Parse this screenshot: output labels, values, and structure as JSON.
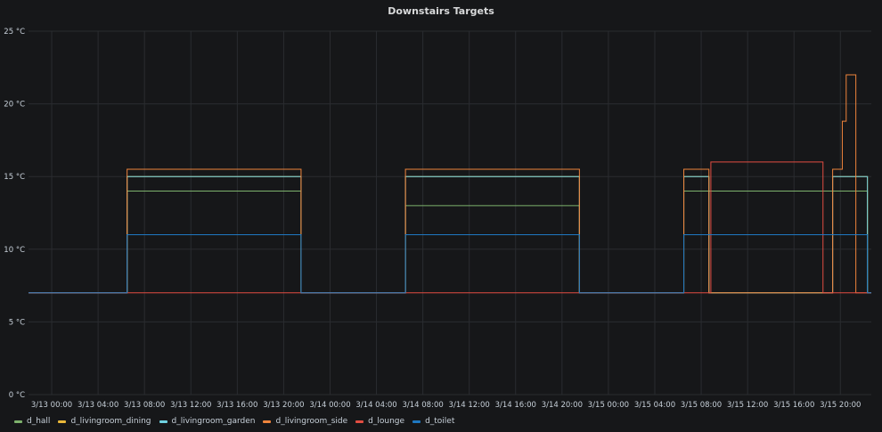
{
  "panel": {
    "title": "Downstairs Targets"
  },
  "chart_data": {
    "type": "line",
    "title": "Downstairs Targets",
    "xlabel": "",
    "ylabel": "",
    "ylim": [
      0,
      25
    ],
    "xlim": [
      "3/12 22:00",
      "3/15 22:40"
    ],
    "grid": true,
    "legend_position": "bottom-left",
    "y_ticks": [
      {
        "value": 0,
        "label": "0 °C"
      },
      {
        "value": 5,
        "label": "5 °C"
      },
      {
        "value": 10,
        "label": "10 °C"
      },
      {
        "value": 15,
        "label": "15 °C"
      },
      {
        "value": 20,
        "label": "20 °C"
      },
      {
        "value": 25,
        "label": "25 °C"
      }
    ],
    "x_ticks": [
      {
        "value": "3/13 00:00",
        "label": "3/13 00:00"
      },
      {
        "value": "3/13 04:00",
        "label": "3/13 04:00"
      },
      {
        "value": "3/13 08:00",
        "label": "3/13 08:00"
      },
      {
        "value": "3/13 12:00",
        "label": "3/13 12:00"
      },
      {
        "value": "3/13 16:00",
        "label": "3/13 16:00"
      },
      {
        "value": "3/13 20:00",
        "label": "3/13 20:00"
      },
      {
        "value": "3/14 00:00",
        "label": "3/14 00:00"
      },
      {
        "value": "3/14 04:00",
        "label": "3/14 04:00"
      },
      {
        "value": "3/14 08:00",
        "label": "3/14 08:00"
      },
      {
        "value": "3/14 12:00",
        "label": "3/14 12:00"
      },
      {
        "value": "3/14 16:00",
        "label": "3/14 16:00"
      },
      {
        "value": "3/14 20:00",
        "label": "3/14 20:00"
      },
      {
        "value": "3/15 00:00",
        "label": "3/15 00:00"
      },
      {
        "value": "3/15 04:00",
        "label": "3/15 04:00"
      },
      {
        "value": "3/15 08:00",
        "label": "3/15 08:00"
      },
      {
        "value": "3/15 12:00",
        "label": "3/15 12:00"
      },
      {
        "value": "3/15 16:00",
        "label": "3/15 16:00"
      },
      {
        "value": "3/15 20:00",
        "label": "3/15 20:00"
      }
    ],
    "series": [
      {
        "name": "d_hall",
        "color": "#7eb26d",
        "step": true,
        "points": [
          [
            "3/12 22:00",
            7
          ],
          [
            "3/13 06:30",
            14
          ],
          [
            "3/13 21:30",
            7
          ],
          [
            "3/14 06:30",
            13
          ],
          [
            "3/14 21:30",
            7
          ],
          [
            "3/15 06:30",
            14
          ],
          [
            "3/15 22:20",
            7
          ],
          [
            "3/15 22:40",
            7
          ]
        ]
      },
      {
        "name": "d_livingroom_dining",
        "color": "#eab839",
        "step": true,
        "points": [
          [
            "3/12 22:00",
            7
          ],
          [
            "3/13 06:30",
            15
          ],
          [
            "3/13 21:30",
            7
          ],
          [
            "3/14 06:30",
            15
          ],
          [
            "3/14 21:30",
            7
          ],
          [
            "3/15 06:30",
            15
          ],
          [
            "3/15 08:40",
            7
          ],
          [
            "3/15 19:20",
            15
          ],
          [
            "3/15 22:20",
            7
          ],
          [
            "3/15 22:40",
            7
          ]
        ]
      },
      {
        "name": "d_livingroom_garden",
        "color": "#6ed0e0",
        "step": true,
        "points": [
          [
            "3/12 22:00",
            7
          ],
          [
            "3/13 06:30",
            15
          ],
          [
            "3/13 21:30",
            7
          ],
          [
            "3/14 06:30",
            15
          ],
          [
            "3/14 21:30",
            7
          ],
          [
            "3/15 06:30",
            15
          ],
          [
            "3/15 08:40",
            7
          ],
          [
            "3/15 19:20",
            15
          ],
          [
            "3/15 22:20",
            7
          ],
          [
            "3/15 22:40",
            7
          ]
        ]
      },
      {
        "name": "d_livingroom_side",
        "color": "#ef843c",
        "step": true,
        "points": [
          [
            "3/12 22:00",
            7
          ],
          [
            "3/13 06:30",
            15.5
          ],
          [
            "3/13 21:30",
            7
          ],
          [
            "3/14 06:30",
            15.5
          ],
          [
            "3/14 21:30",
            7
          ],
          [
            "3/15 06:30",
            15.5
          ],
          [
            "3/15 08:40",
            7
          ],
          [
            "3/15 19:20",
            15.5
          ],
          [
            "3/15 20:10",
            18.8
          ],
          [
            "3/15 20:30",
            22
          ],
          [
            "3/15 21:20",
            7
          ],
          [
            "3/15 22:40",
            7
          ]
        ]
      },
      {
        "name": "d_lounge",
        "color": "#e24d42",
        "step": true,
        "points": [
          [
            "3/12 22:00",
            7
          ],
          [
            "3/15 08:50",
            16
          ],
          [
            "3/15 18:30",
            7
          ],
          [
            "3/15 22:40",
            7
          ]
        ]
      },
      {
        "name": "d_toilet",
        "color": "#1f78c1",
        "step": true,
        "points": [
          [
            "3/12 22:00",
            7
          ],
          [
            "3/13 06:30",
            11
          ],
          [
            "3/13 21:30",
            7
          ],
          [
            "3/14 06:30",
            11
          ],
          [
            "3/14 21:30",
            7
          ],
          [
            "3/15 06:30",
            11
          ],
          [
            "3/15 22:20",
            7
          ],
          [
            "3/15 22:40",
            7
          ]
        ]
      }
    ]
  }
}
